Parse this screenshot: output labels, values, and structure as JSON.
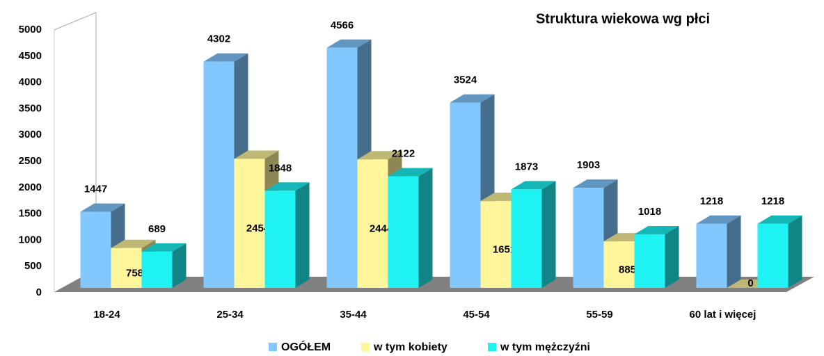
{
  "chart_data": {
    "type": "bar3d",
    "title": "Struktura wiekowa wg płci",
    "categories": [
      "18-24",
      "25-34",
      "35-44",
      "45-54",
      "55-59",
      "60 lat i więcej"
    ],
    "series": [
      {
        "name": "OGÓŁEM",
        "color": "#80c8ff",
        "values": [
          1447,
          4302,
          4566,
          3524,
          1903,
          1218
        ]
      },
      {
        "name": "w tym kobiety",
        "color": "#fff59a",
        "values": [
          758,
          2454,
          2444,
          1651,
          885,
          0
        ]
      },
      {
        "name": "w tym mężczyźni",
        "color": "#1ef2f2",
        "values": [
          689,
          1848,
          2122,
          1873,
          1018,
          1218
        ]
      }
    ],
    "ylim": [
      0,
      5000
    ],
    "yticks": [
      0,
      500,
      1000,
      1500,
      2000,
      2500,
      3000,
      3500,
      4000,
      4500,
      5000
    ]
  }
}
